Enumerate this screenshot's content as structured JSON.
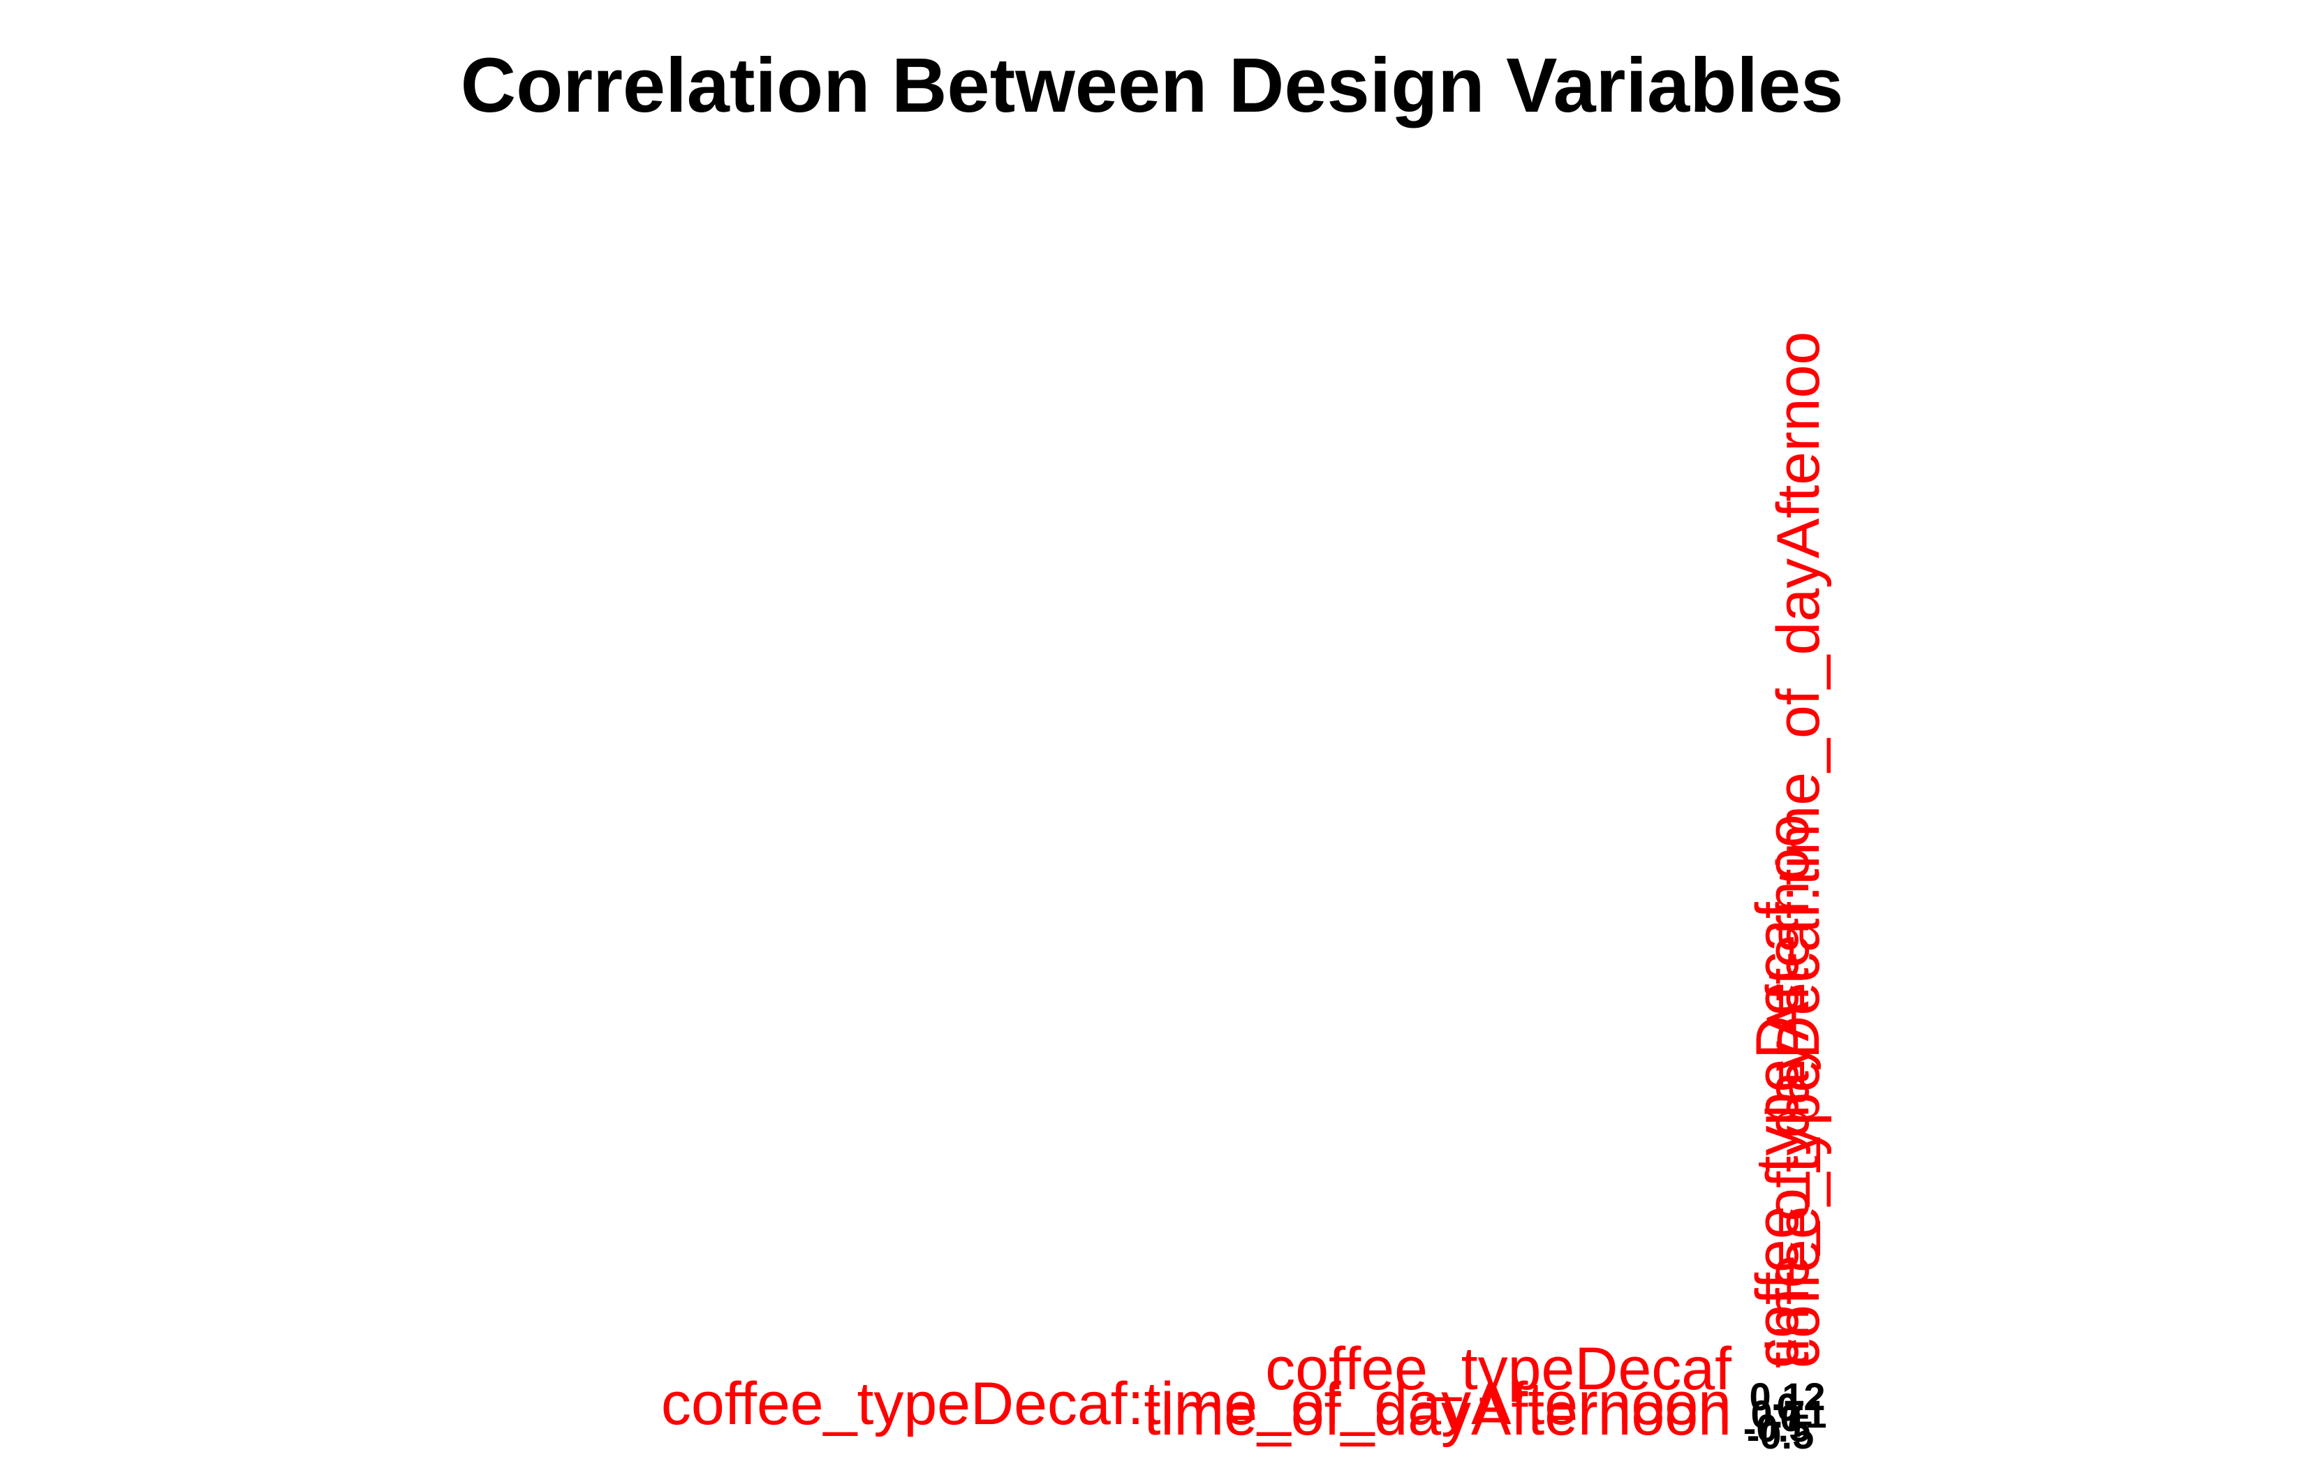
{
  "chart_data": {
    "type": "heatmap",
    "title": "Correlation Between Design Variables",
    "xlabel": "",
    "ylabel": "",
    "variables": [
      "coffee_typeDecaf",
      "time_of_dayAfternoon",
      "coffee_typeDecaf:time_of_dayAfternoon"
    ],
    "column_labels": [
      "coffee_typeDecaf",
      "time_of_dayAfternoo",
      "coffee_typeDecaf:time_of_dayAfternoo"
    ],
    "cell_labels": [
      "0",
      "0",
      "0.12",
      "-0.5",
      "-0.5",
      "0.71"
    ],
    "label_color": "#ff0000",
    "value_color": "#000000",
    "background_color": "#ffffff",
    "grid": false,
    "legend": "none"
  }
}
